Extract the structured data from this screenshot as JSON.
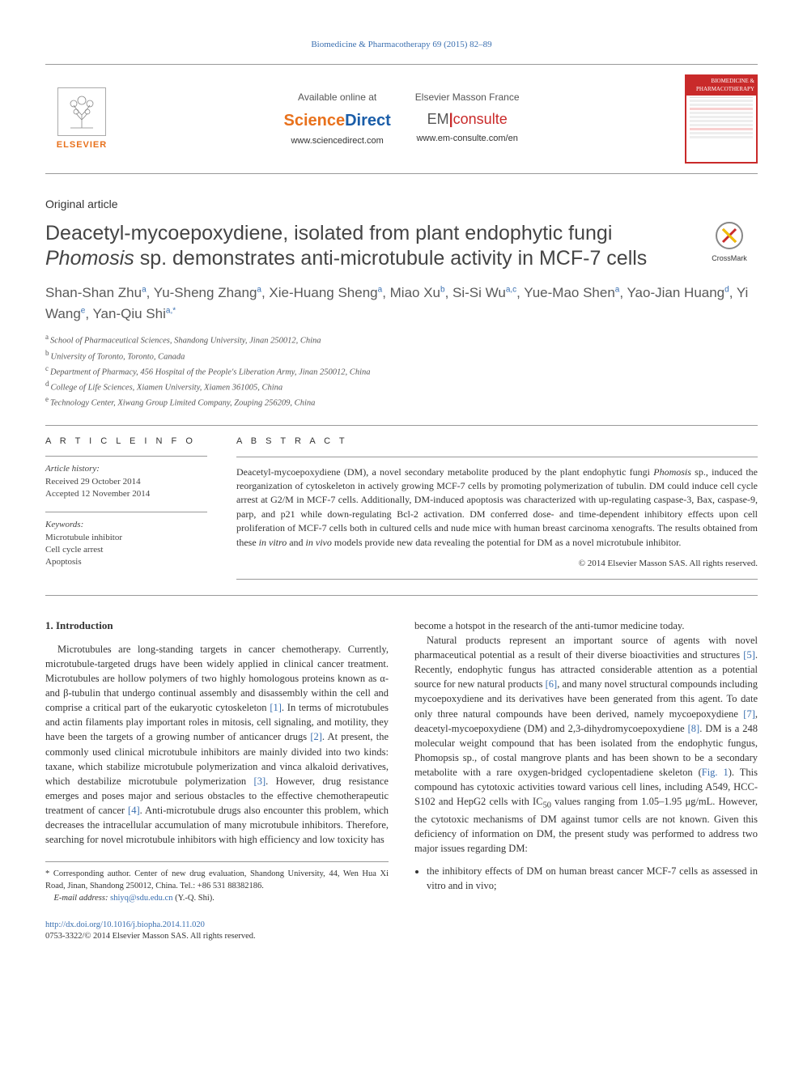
{
  "top_link": "Biomedicine & Pharmacotherapy 69 (2015) 82–89",
  "header": {
    "elsevier": "ELSEVIER",
    "available_label": "Available online at",
    "sciencedirect_part1": "Science",
    "sciencedirect_part2": "Direct",
    "sd_url": "www.sciencedirect.com",
    "masson_label": "Elsevier Masson France",
    "em_pre": "EM",
    "em_post": "consulte",
    "em_url": "www.em-consulte.com/en",
    "cover_head": "BIOMEDICINE & PHARMACOTHERAPY"
  },
  "article_type": "Original article",
  "title_part1": "Deacetyl-mycoepoxydiene, isolated from plant endophytic fungi ",
  "title_italic": "Phomosis",
  "title_part2": " sp. demonstrates anti-microtubule activity in MCF-7 cells",
  "crossmark": "CrossMark",
  "authors_html": "Shan-Shan Zhu<sup class='sup'>a</sup>, Yu-Sheng Zhang<sup class='sup'>a</sup>, Xie-Huang Sheng<sup class='sup'>a</sup>, Miao Xu<sup class='sup'>b</sup>, Si-Si Wu<sup class='sup'>a,c</sup>, Yue-Mao Shen<sup class='sup'>a</sup>, Yao-Jian Huang<sup class='sup'>d</sup>, Yi Wang<sup class='sup'>e</sup>, Yan-Qiu Shi<sup class='sup'>a,*</sup>",
  "affiliations": [
    {
      "k": "a",
      "t": "School of Pharmaceutical Sciences, Shandong University, Jinan 250012, China"
    },
    {
      "k": "b",
      "t": "University of Toronto, Toronto, Canada"
    },
    {
      "k": "c",
      "t": "Department of Pharmacy, 456 Hospital of the People's Liberation Army, Jinan 250012, China"
    },
    {
      "k": "d",
      "t": "College of Life Sciences, Xiamen University, Xiamen 361005, China"
    },
    {
      "k": "e",
      "t": "Technology Center, Xiwang Group Limited Company, Zouping 256209, China"
    }
  ],
  "info": {
    "head": "A R T I C L E   I N F O",
    "history_label": "Article history:",
    "received": "Received 29 October 2014",
    "accepted": "Accepted 12 November 2014",
    "keywords_label": "Keywords:",
    "keywords": [
      "Microtubule inhibitor",
      "Cell cycle arrest",
      "Apoptosis"
    ]
  },
  "abstract": {
    "head": "A B S T R A C T",
    "text_parts": [
      "Deacetyl-mycoepoxydiene (DM), a novel secondary metabolite produced by the plant endophytic fungi ",
      "Phomosis",
      " sp., induced the reorganization of cytoskeleton in actively growing MCF-7 cells by promoting polymerization of tubulin. DM could induce cell cycle arrest at G2/M in MCF-7 cells. Additionally, DM-induced apoptosis was characterized with up-regulating caspase-3, Bax, caspase-9, parp, and p21 while down-regulating Bcl-2 activation. DM conferred dose- and time-dependent inhibitory effects upon cell proliferation of MCF-7 cells both in cultured cells and nude mice with human breast carcinoma xenografts. The results obtained from these ",
      "in vitro",
      " and ",
      "in vivo",
      " models provide new data revealing the potential for DM as a novel microtubule inhibitor."
    ],
    "copyright": "© 2014 Elsevier Masson SAS. All rights reserved."
  },
  "section1_head": "1. Introduction",
  "col1_p1": "Microtubules are long-standing targets in cancer chemotherapy. Currently, microtubule-targeted drugs have been widely applied in clinical cancer treatment. Microtubules are hollow polymers of two highly homologous proteins known as α-and β-tubulin that undergo continual assembly and disassembly within the cell and comprise a critical part of the eukaryotic cytoskeleton ",
  "cite1": "[1]",
  "col1_p1b": ". In terms of microtubules and actin filaments play important roles in mitosis, cell signaling, and motility, they have been the targets of a growing number of anticancer drugs ",
  "cite2": "[2]",
  "col1_p1c": ". At present, the commonly used clinical microtubule inhibitors are mainly divided into two kinds: taxane, which stabilize microtubule polymerization and vinca alkaloid derivatives, which destabilize microtubule polymerization ",
  "cite3": "[3]",
  "col1_p1d": ". However, drug resistance emerges and poses major and serious obstacles to the effective chemotherapeutic treatment of cancer ",
  "cite4": "[4]",
  "col1_p1e": ". Anti-microtubule drugs also encounter this problem, which decreases the intracellular accumulation of many microtubule inhibitors. Therefore, searching for novel microtubule inhibitors with high efficiency and low toxicity has",
  "col2_p0": "become a hotspot in the research of the anti-tumor medicine today.",
  "col2_p1a": "Natural products represent an important source of agents with novel pharmaceutical potential as a result of their diverse bioactivities and structures ",
  "cite5": "[5]",
  "col2_p1b": ". Recently, endophytic fungus has attracted considerable attention as a potential source for new natural products ",
  "cite6": "[6]",
  "col2_p1c": ", and many novel structural compounds including mycoepoxydiene and its derivatives have been generated from this agent. To date only three natural compounds have been derived, namely mycoepoxydiene ",
  "cite7": "[7]",
  "col2_p1d": ", deacetyl-mycoepoxydiene (DM) and 2,3-dihydromycoepoxydiene ",
  "cite8": "[8]",
  "col2_p1e": ". DM is a 248 molecular weight compound that has been isolated from the endophytic fungus, ",
  "phomopsis": "Phomopsis",
  "col2_p1f": " sp., of costal mangrove plants and has been shown to be a secondary metabolite with a rare oxygen-bridged cyclopentadiene skeleton (",
  "fig1": "Fig. 1",
  "col2_p1g": "). This compound has cytotoxic activities toward various cell lines, including A549, HCC-S102 and HepG2 cells with IC",
  "sub50": "50",
  "col2_p1h": " values ranging from 1.05–1.95 μg/mL. However, the cytotoxic mechanisms of DM against tumor cells are not known. Given this deficiency of information on DM, the present study was performed to address two major issues regarding DM:",
  "bullet1a": "the inhibitory effects of DM on human breast cancer MCF-7 cells as assessed ",
  "bullet1b": "in vitro",
  "bullet1c": " and ",
  "bullet1d": "in vivo",
  "bullet1e": ";",
  "footnote": {
    "star": "*",
    "text1": " Corresponding author. Center of new drug evaluation, Shandong University, 44, Wen Hua Xi Road, Jinan, Shandong 250012, China. Tel.: +86 531 88382186.",
    "email_label": "E-mail address: ",
    "email": "shiyq@sdu.edu.cn",
    "email_tail": " (Y.-Q. Shi)."
  },
  "doi": "http://dx.doi.org/10.1016/j.biopha.2014.11.020",
  "issn_line": "0753-3322/© 2014 Elsevier Masson SAS. All rights reserved.",
  "colors": {
    "link": "#3a6fb0",
    "orange": "#e8711c",
    "red": "#c92a2a",
    "rule": "#999999",
    "text": "#333333"
  }
}
